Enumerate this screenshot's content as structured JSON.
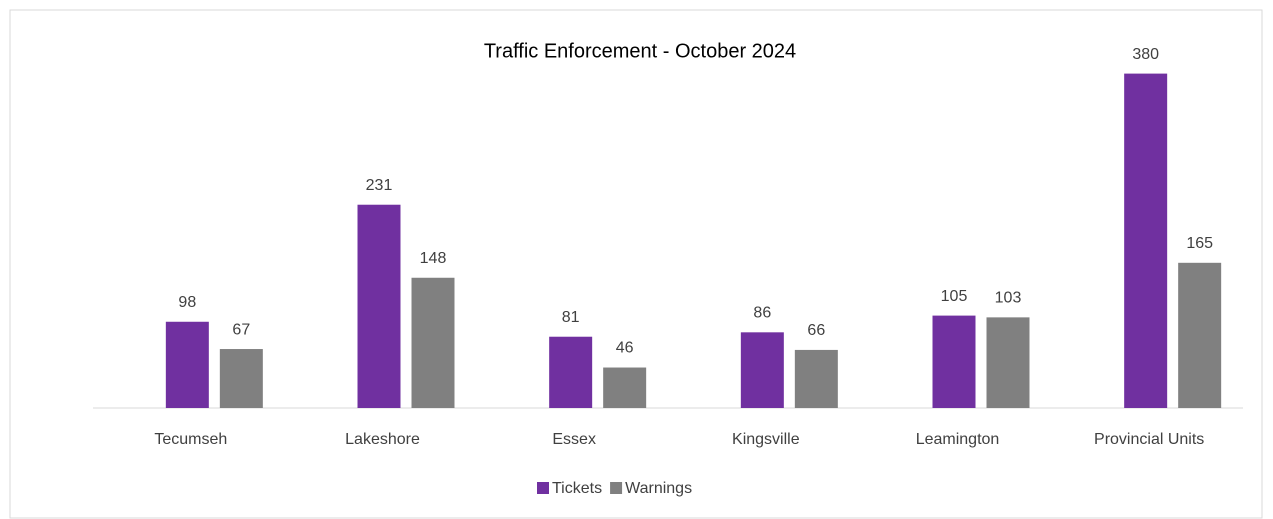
{
  "chart_data": {
    "type": "bar",
    "title": "Traffic Enforcement - October 2024",
    "categories": [
      "Tecumseh",
      "Lakeshore",
      "Essex",
      "Kingsville",
      "Leamington",
      "Provincial Units"
    ],
    "series": [
      {
        "name": "Tickets",
        "color": "#7030a0",
        "values": [
          98,
          231,
          81,
          86,
          105,
          380
        ]
      },
      {
        "name": "Warnings",
        "color": "#808080",
        "values": [
          67,
          148,
          46,
          66,
          103,
          165
        ]
      }
    ],
    "ylim": [
      0,
      400
    ]
  }
}
